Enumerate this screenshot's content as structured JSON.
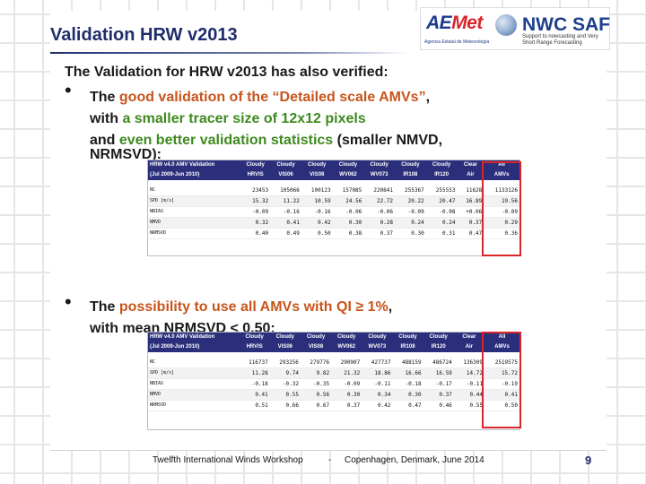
{
  "slide": {
    "title": "Validation HRW v2013",
    "lead": "The Validation for HRW v2013 has also verified:",
    "bullet1": {
      "line1_pre": "The ",
      "line1_hl": "good validation of the “Detailed scale AMVs”",
      "line1_post": ",",
      "line2_pre": "with ",
      "line2_hl": "a smaller tracer size of 12x12 pixels",
      "line3_pre": " and ",
      "line3_hl": "even better validation statistics",
      "line3_post": " (smaller NMVD,",
      "line4": "NRMSVD):"
    },
    "bullet2": {
      "line1_pre": "The ",
      "line1_hl": "possibility to use all AMVs with QI ≥ 1%",
      "line1_post": ",",
      "line2": "with mean NRMSVD < 0.50:"
    },
    "bullet_glyph": "•"
  },
  "logos": {
    "aemet_a": "AE",
    "aemet_b": "Met",
    "aemet_sub": "Agencia Estatal de Meteorología",
    "nwc": "NWC SAF",
    "nwc_sub": "Support to nowcasting and Very Short Range Forecasting"
  },
  "table1": {
    "title": "HRW v4.0 AMV Validation",
    "period": "(Jul 2009-Jun 2010)",
    "top_headers": [
      "Cloudy",
      "Cloudy",
      "Cloudy",
      "Cloudy",
      "Cloudy",
      "Cloudy",
      "Cloudy",
      "Clear",
      "All"
    ],
    "sub_headers": [
      "HRVIS",
      "VIS06",
      "VIS08",
      "WV062",
      "WV073",
      "IR108",
      "IR120",
      "Air",
      "AMVs"
    ],
    "rows": [
      {
        "label": "NC",
        "values": [
          "23453",
          "105066",
          "100123",
          "157085",
          "220841",
          "255367",
          "255553",
          "11628",
          "1133126"
        ]
      },
      {
        "label": "SPD [m/s]",
        "values": [
          "15.32",
          "11.22",
          "10.59",
          "24.56",
          "22.72",
          "20.22",
          "20.47",
          "16.89",
          "19.56"
        ]
      },
      {
        "label": "NBIAS",
        "values": [
          "-0.09",
          "-0.16",
          "-0.16",
          "-0.06",
          "-0.06",
          "-0.09",
          "-0.08",
          "+0.06",
          "-0.09"
        ]
      },
      {
        "label": "NMVD",
        "values": [
          "0.32",
          "0.41",
          "0.42",
          "0.30",
          "0.28",
          "0.24",
          "0.24",
          "0.37",
          "0.29"
        ]
      },
      {
        "label": "NRMSVD",
        "values": [
          "0.40",
          "0.49",
          "0.50",
          "0.38",
          "0.37",
          "0.30",
          "0.31",
          "0.47",
          "0.36"
        ]
      }
    ]
  },
  "table2": {
    "title": "HRW v4.0 AMV Validation",
    "period": "(Jul 2009-Jun 2010)",
    "top_headers": [
      "Cloudy",
      "Cloudy",
      "Cloudy",
      "Cloudy",
      "Cloudy",
      "Cloudy",
      "Cloudy",
      "Clear",
      "All"
    ],
    "sub_headers": [
      "HRVIS",
      "VIS06",
      "VIS08",
      "WV062",
      "WV073",
      "IR108",
      "IR120",
      "Air",
      "AMVs"
    ],
    "rows": [
      {
        "label": "NC",
        "values": [
          "116737",
          "293256",
          "279776",
          "290907",
          "427737",
          "488159",
          "486724",
          "136309",
          "2519575"
        ]
      },
      {
        "label": "SPD [m/s]",
        "values": [
          "11.28",
          "9.74",
          "9.82",
          "21.32",
          "18.86",
          "16.66",
          "16.59",
          "14.72",
          "15.72"
        ]
      },
      {
        "label": "NBIAS",
        "values": [
          "-0.18",
          "-0.32",
          "-0.35",
          "-0.09",
          "-0.11",
          "-0.18",
          "-0.17",
          "-0.11",
          "-0.19"
        ]
      },
      {
        "label": "NMVD",
        "values": [
          "0.41",
          "0.55",
          "0.56",
          "0.30",
          "0.34",
          "0.30",
          "0.37",
          "0.44",
          "0.41"
        ]
      },
      {
        "label": "NRMSVD",
        "values": [
          "0.51",
          "0.66",
          "0.67",
          "0.37",
          "0.42",
          "0.47",
          "0.46",
          "0.55",
          "0.50"
        ]
      }
    ]
  },
  "footer": {
    "left": "Twelfth International Winds Workshop",
    "sep": "-",
    "right": "Copenhagen, Denmark, June 2014",
    "page": "9"
  },
  "colors": {
    "title": "#1f2d6b",
    "green": "#3e8a1f",
    "orange": "#c8551c",
    "table_header": "#2b2e7a",
    "highlight": "#d8262b"
  }
}
